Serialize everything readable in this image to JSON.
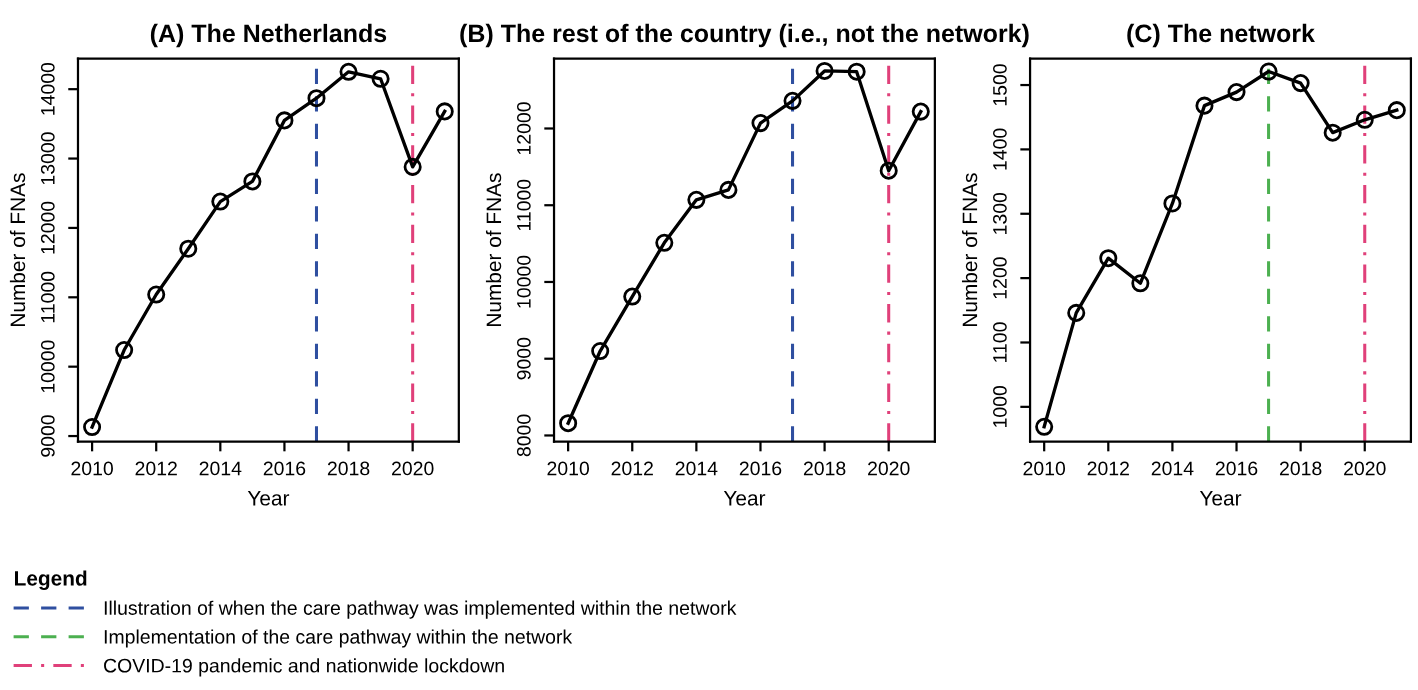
{
  "chart_data": [
    {
      "type": "line",
      "title": "(A) The Netherlands",
      "xlabel": "Year",
      "ylabel": "Number of FNAs",
      "x": [
        2010,
        2011,
        2012,
        2013,
        2014,
        2015,
        2016,
        2017,
        2018,
        2019,
        2020,
        2021
      ],
      "series": [
        {
          "color": "#000000",
          "values": [
            9130,
            10240,
            11040,
            11700,
            12380,
            12670,
            13550,
            13870,
            14250,
            14150,
            12880,
            13680
          ]
        }
      ],
      "marker": "circle",
      "line_style": "solid",
      "grid": false,
      "xlim": [
        2009.56,
        2021.44
      ],
      "ylim": [
        8920,
        14440
      ],
      "xticks": [
        2010,
        2012,
        2014,
        2016,
        2018,
        2020
      ],
      "yticks": [
        9000,
        10000,
        11000,
        12000,
        13000,
        14000
      ],
      "ref_lines": [
        {
          "axis": "x",
          "value": 2017,
          "label": "Illustration of when the care pathway was implemented within the network",
          "color": "#2f4fa0",
          "line_style": "dashed"
        },
        {
          "axis": "x",
          "value": 2020,
          "color": "#e0407a",
          "line_style": "dashdot"
        }
      ],
      "legend": "bottom",
      "legend_title": "Legend"
    },
    {
      "type": "line",
      "title": "(B) The rest of the country (i.e., not the network)",
      "xlabel": "Year",
      "ylabel": "Number of FNAs",
      "x": [
        2010,
        2011,
        2012,
        2013,
        2014,
        2015,
        2016,
        2017,
        2018,
        2019,
        2020,
        2021
      ],
      "series": [
        {
          "color": "#000000",
          "values": [
            8160,
            9100,
            9810,
            10510,
            11070,
            11200,
            12070,
            12360,
            12750,
            12740,
            11450,
            12220
          ]
        }
      ],
      "marker": "circle",
      "line_style": "solid",
      "grid": false,
      "xlim": [
        2009.56,
        2021.44
      ],
      "ylim": [
        7920,
        12910
      ],
      "xticks": [
        2010,
        2012,
        2014,
        2016,
        2018,
        2020
      ],
      "yticks": [
        8000,
        9000,
        10000,
        11000,
        12000
      ],
      "ref_lines": [
        {
          "axis": "x",
          "value": 2017,
          "color": "#2f4fa0",
          "line_style": "dashed"
        },
        {
          "axis": "x",
          "value": 2020,
          "color": "#e0407a",
          "line_style": "dashdot"
        }
      ]
    },
    {
      "type": "line",
      "title": "(C) The network",
      "xlabel": "Year",
      "ylabel": "Number of FNAs",
      "x": [
        2010,
        2011,
        2012,
        2013,
        2014,
        2015,
        2016,
        2017,
        2018,
        2019,
        2020,
        2021
      ],
      "series": [
        {
          "color": "#000000",
          "values": [
            969,
            1146,
            1231,
            1192,
            1316,
            1468,
            1489,
            1521,
            1503,
            1426,
            1446,
            1461
          ]
        }
      ],
      "marker": "circle",
      "line_style": "solid",
      "grid": false,
      "xlim": [
        2009.56,
        2021.44
      ],
      "ylim": [
        946,
        1541
      ],
      "xticks": [
        2010,
        2012,
        2014,
        2016,
        2018,
        2020
      ],
      "yticks": [
        1000,
        1100,
        1200,
        1300,
        1400,
        1500
      ],
      "ref_lines": [
        {
          "axis": "x",
          "value": 2017,
          "label": "Implementation of the care pathway within the network",
          "color": "#4cb050",
          "line_style": "dashed"
        },
        {
          "axis": "x",
          "value": 2020,
          "label": "COVID-19 pandemic and nationwide lockdown",
          "color": "#e0407a",
          "line_style": "dashdot"
        }
      ],
      "legend": "bottom left"
    }
  ]
}
